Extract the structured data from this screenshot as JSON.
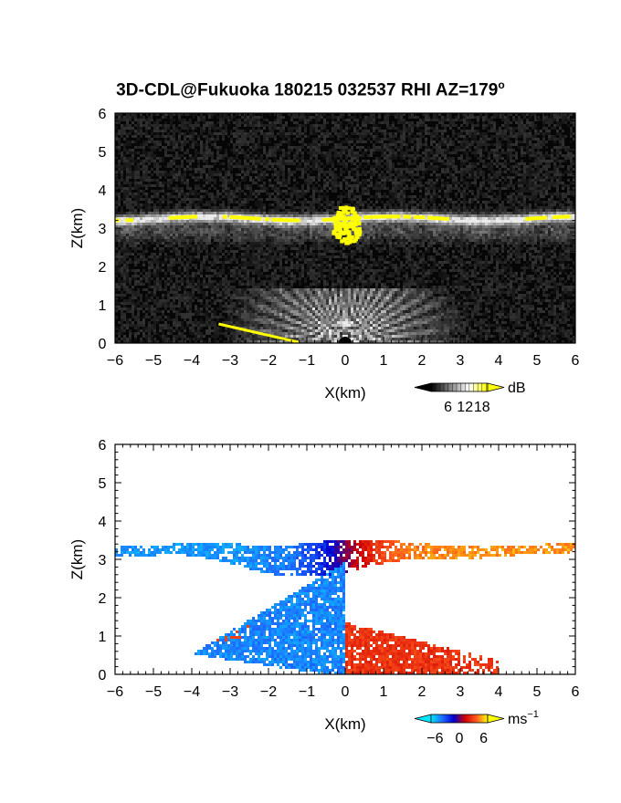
{
  "header": {
    "title_main": "3D-CDL@Fukuoka 180215 032537 RHI AZ=179",
    "title_sup": "o"
  },
  "chart_data": [
    {
      "type": "heatmap",
      "title": "3D-CDL@Fukuoka 180215 032537 RHI AZ=179°",
      "quantity": "signal intensity",
      "xlabel": "X(km)",
      "ylabel": "Z(km)",
      "xlim": [
        -6,
        6
      ],
      "ylim": [
        0,
        6
      ],
      "x_ticks": [
        "-6",
        "-5",
        "-4",
        "-3",
        "-2",
        "-1",
        "0",
        "1",
        "2",
        "3",
        "4",
        "5",
        "6"
      ],
      "y_ticks": [
        "0",
        "1",
        "2",
        "3",
        "4",
        "5",
        "6"
      ],
      "colorbar": {
        "unit": "dB",
        "ticks": [
          "6",
          "12",
          "18"
        ],
        "range": [
          0,
          20
        ],
        "colors": [
          "#000000",
          "#808080",
          "#ffffff",
          "#ffff00"
        ]
      },
      "features": [
        {
          "name": "cloud layer",
          "x_range": [
            -6,
            6
          ],
          "z_center": 3.25,
          "z_thickness": 0.25,
          "intensity_db": [
            10,
            20
          ]
        },
        {
          "name": "virga",
          "x_range": [
            -6,
            6
          ],
          "z_range": [
            2.6,
            3.2
          ],
          "intensity_db": [
            4,
            12
          ]
        },
        {
          "name": "strong echo core",
          "x_range": [
            -0.35,
            0.35
          ],
          "z_range": [
            2.6,
            3.6
          ],
          "intensity_db": [
            18,
            20
          ]
        },
        {
          "name": "near-range clutter",
          "x_range": [
            -3.2,
            3.2
          ],
          "z_range": [
            0,
            1.3
          ],
          "intensity_db": [
            6,
            16
          ]
        }
      ],
      "grid": false
    },
    {
      "type": "heatmap",
      "quantity": "radial velocity",
      "xlabel": "X(km)",
      "ylabel": "Z(km)",
      "xlim": [
        -6,
        6
      ],
      "ylim": [
        0,
        6
      ],
      "x_ticks": [
        "-6",
        "-5",
        "-4",
        "-3",
        "-2",
        "-1",
        "0",
        "1",
        "2",
        "3",
        "4",
        "5",
        "6"
      ],
      "y_ticks": [
        "0",
        "1",
        "2",
        "3",
        "4",
        "5",
        "6"
      ],
      "colorbar": {
        "unit": "ms",
        "unit_sup": "-1",
        "ticks": [
          "-6",
          "0",
          "6"
        ],
        "range": [
          -7,
          7
        ],
        "colors": [
          "#00e8ff",
          "#1e6bff",
          "#0000d0",
          "#d00000",
          "#ff5a1e",
          "#ffff00"
        ]
      },
      "features": [
        {
          "name": "upper layer",
          "x_range": [
            -6,
            6
          ],
          "z_range": [
            2.7,
            3.6
          ],
          "velocity_ms": [
            -6,
            6
          ]
        },
        {
          "name": "lower layer",
          "x_range": [
            -4.5,
            4.3
          ],
          "z_range": [
            0,
            1.4
          ],
          "velocity_ms": [
            -6,
            6
          ]
        }
      ],
      "grid": false
    }
  ]
}
